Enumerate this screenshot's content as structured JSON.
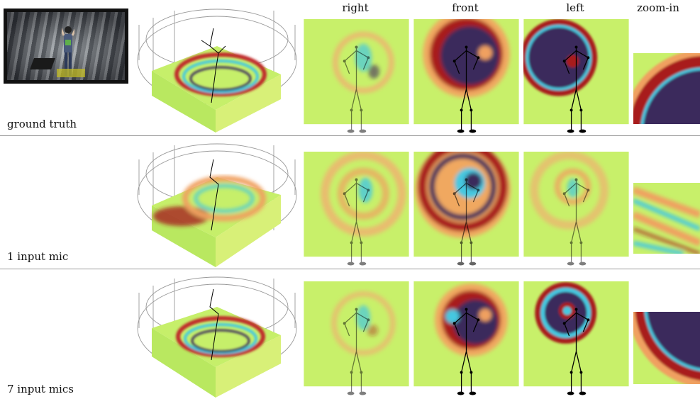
{
  "columns": [
    "right",
    "front",
    "left",
    "zoom-in"
  ],
  "rows": [
    {
      "label": "ground truth"
    },
    {
      "label": "1 input mic"
    },
    {
      "label": "7 input mics"
    }
  ],
  "colors": {
    "field_bg": "#c8f06a",
    "warm": "#f0a060",
    "hot": "#a81e1e",
    "cool": "#45c8e0",
    "deep": "#3a2a5c",
    "skeleton": "#000000",
    "grid": "#8a8a8a"
  }
}
